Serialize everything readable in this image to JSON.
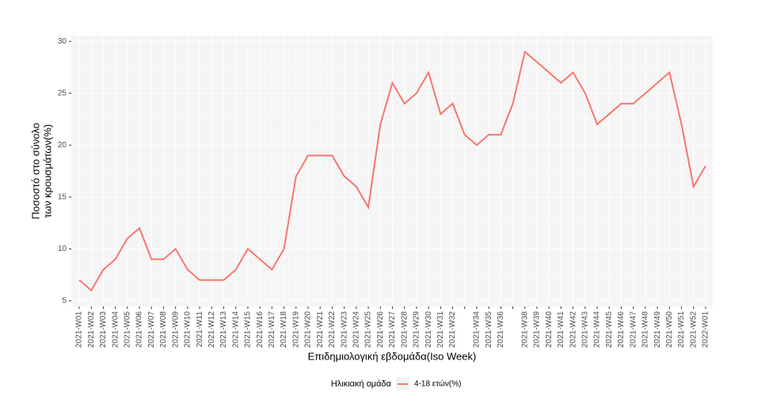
{
  "chart_data": {
    "type": "line",
    "xlabel": "Επιδημιολογική εβδομάδα(Iso Week)",
    "ylabel": [
      "Ποσοστό στο σύνολο",
      "των κρουσμάτων(%)"
    ],
    "legend_title": "Ηλικιακή ομάδα",
    "legend_position": "bottom",
    "grid": true,
    "categories": [
      "2021-W01",
      "2021-W02",
      "2021-W03",
      "2021-W04",
      "2021-W05",
      "2021-W06",
      "2021-W07",
      "2021-W08",
      "2021-W09",
      "2021-W10",
      "2021-W11",
      "2021-W12",
      "2021-W13",
      "2021-W14",
      "2021-W15",
      "2021-W16",
      "2021-W17",
      "2021-W18",
      "2021-W19",
      "2021-W20",
      "2021-W21",
      "2021-W22",
      "2021-W23",
      "2021-W24",
      "2021-W25",
      "2021-W26",
      "2021-W27",
      "2021-W28",
      "2021-W29",
      "2021-W30",
      "2021-W31",
      "2021-W32",
      null,
      "2021-W34",
      "2021-W35",
      "2021-W36",
      null,
      "2021-W38",
      "2021-W39",
      "2021-W40",
      "2021-W41",
      "2021-W42",
      "2021-W43",
      "2021-W44",
      "2021-W45",
      "2021-W46",
      "2021-W47",
      "2021-W48",
      "2021-W49",
      "2021-W50",
      "2021-W51",
      "2021-W52",
      "2022-W01"
    ],
    "series": [
      {
        "name": "4-18 ετών(%)",
        "color": "#f8766d",
        "values": [
          7,
          6,
          8,
          9,
          11,
          12,
          9,
          9,
          10,
          8,
          7,
          7,
          7,
          8,
          10,
          9,
          8,
          10,
          17,
          19,
          19,
          19,
          17,
          16,
          14,
          22,
          26,
          24,
          25,
          27,
          23,
          24,
          21,
          20,
          21,
          21,
          24,
          29,
          28,
          27,
          26,
          27,
          25,
          22,
          23,
          24,
          24,
          25,
          26,
          27,
          22,
          16,
          18
        ]
      }
    ],
    "ylim": [
      4.45,
      30.55
    ],
    "yticks": [
      5,
      10,
      15,
      20,
      25,
      30
    ]
  }
}
